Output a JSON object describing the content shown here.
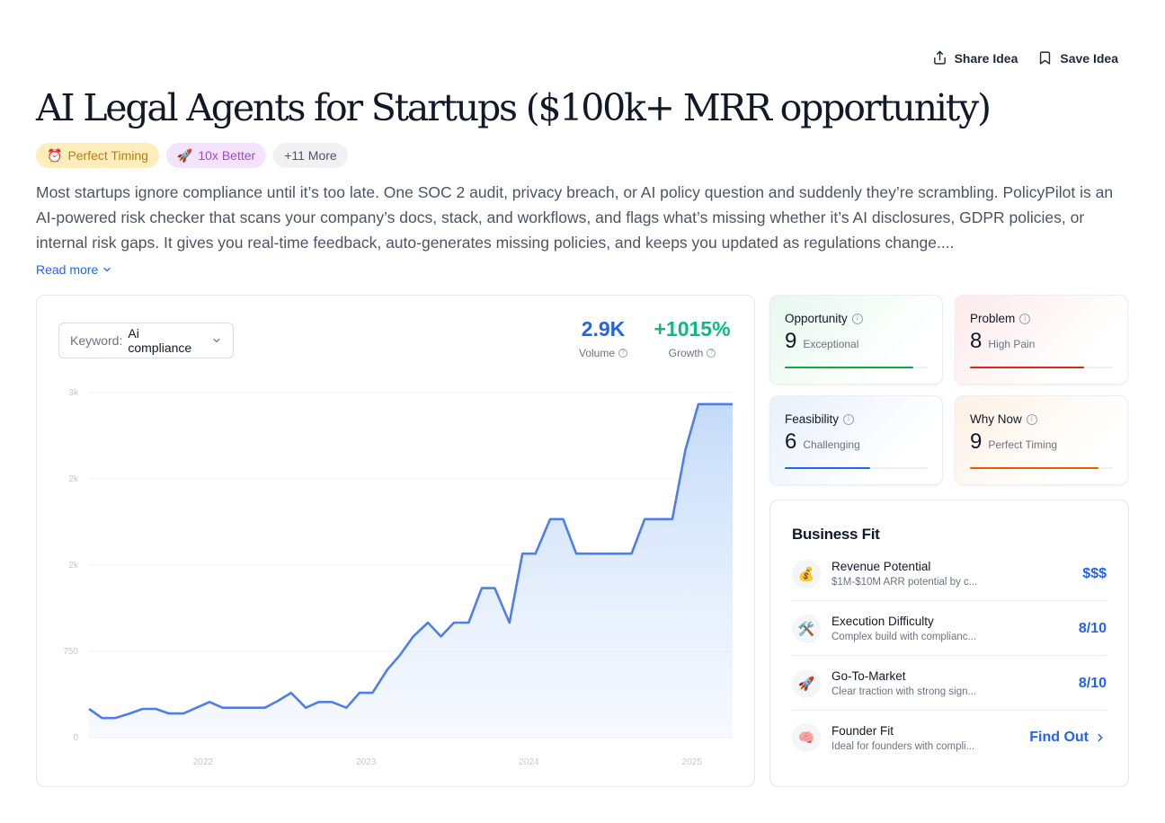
{
  "header": {
    "share_label": "Share Idea",
    "save_label": "Save Idea"
  },
  "title": "AI Legal Agents for Startups ($100k+ MRR opportunity)",
  "badges": [
    {
      "icon": "alarm-clock-icon",
      "glyph": "⏰",
      "label": "Perfect Timing"
    },
    {
      "icon": "rocket-icon",
      "glyph": "🚀",
      "label": "10x Better"
    },
    {
      "label": "+11 More"
    }
  ],
  "description": "Most startups ignore compliance until it’s too late. One SOC 2 audit, privacy breach, or AI policy question and suddenly they’re scrambling. PolicyPilot is an AI-powered risk checker that scans your company’s docs, stack, and workflows, and flags what’s missing whether it’s AI disclosures, GDPR policies, or internal risk gaps. It gives you real-time feedback, auto-generates missing policies, and keeps you updated as regulations change....",
  "read_more": "Read more",
  "keyword": {
    "label": "Keyword:",
    "value": "Ai compliance"
  },
  "stats": {
    "volume": {
      "value": "2.9K",
      "label": "Volume"
    },
    "growth": {
      "value": "+1015%",
      "label": "Growth"
    }
  },
  "chart_data": {
    "type": "area",
    "y_ticks": [
      0,
      750,
      1500,
      2250,
      3000
    ],
    "y_tick_labels": [
      "0",
      "750",
      "2k",
      "2k",
      "3k"
    ],
    "ylim": [
      0,
      3000
    ],
    "x_ticks": [
      2022,
      2023,
      2024,
      2025
    ],
    "x_tick_labels": [
      "2022",
      "2023",
      "2024",
      "2025"
    ],
    "xlim": [
      2021.3,
      2025.25
    ],
    "color": "#4f7ee8",
    "x": [
      2021.3,
      2021.38,
      2021.46,
      2021.55,
      2021.63,
      2021.71,
      2021.79,
      2021.88,
      2021.96,
      2022.04,
      2022.12,
      2022.21,
      2022.29,
      2022.38,
      2022.46,
      2022.54,
      2022.63,
      2022.71,
      2022.79,
      2022.88,
      2022.96,
      2023.04,
      2023.13,
      2023.21,
      2023.29,
      2023.38,
      2023.46,
      2023.54,
      2023.63,
      2023.71,
      2023.79,
      2023.88,
      2023.96,
      2024.04,
      2024.13,
      2024.21,
      2024.29,
      2024.38,
      2024.46,
      2024.54,
      2024.63,
      2024.71,
      2024.79,
      2024.88,
      2024.96,
      2025.04,
      2025.13,
      2025.21,
      2025.25
    ],
    "values": [
      250,
      170,
      170,
      210,
      250,
      250,
      210,
      210,
      260,
      310,
      260,
      260,
      260,
      260,
      320,
      390,
      260,
      310,
      310,
      260,
      390,
      390,
      590,
      720,
      880,
      1000,
      880,
      1000,
      1000,
      1300,
      1300,
      1000,
      1600,
      1600,
      1900,
      1900,
      1600,
      1600,
      1600,
      1600,
      1600,
      1900,
      1900,
      1900,
      2500,
      2900,
      2900,
      2900,
      2900
    ]
  },
  "scores": [
    {
      "title": "Opportunity",
      "value": "9",
      "label": "Exceptional",
      "level": 0.9,
      "color": "#16a34a"
    },
    {
      "title": "Problem",
      "value": "8",
      "label": "High Pain",
      "level": 0.8,
      "color": "#dc2626"
    },
    {
      "title": "Feasibility",
      "value": "6",
      "label": "Challenging",
      "level": 0.6,
      "color": "#2563eb"
    },
    {
      "title": "Why Now",
      "value": "9",
      "label": "Perfect Timing",
      "level": 0.9,
      "color": "#ea580c"
    }
  ],
  "business_fit": {
    "title": "Business Fit",
    "rows": [
      {
        "icon": "money-bag-icon",
        "glyph": "💰",
        "name": "Revenue Potential",
        "sub": "$1M-$10M ARR potential by c...",
        "value": "$$$"
      },
      {
        "icon": "tools-icon",
        "glyph": "🛠️",
        "name": "Execution Difficulty",
        "sub": "Complex build with complianc...",
        "value": "8/10"
      },
      {
        "icon": "rocket-icon",
        "glyph": "🚀",
        "name": "Go-To-Market",
        "sub": "Clear traction with strong sign...",
        "value": "8/10"
      },
      {
        "icon": "brain-icon",
        "glyph": "🧠",
        "name": "Founder Fit",
        "sub": "Ideal for founders with compli...",
        "value": "Find Out"
      }
    ]
  }
}
